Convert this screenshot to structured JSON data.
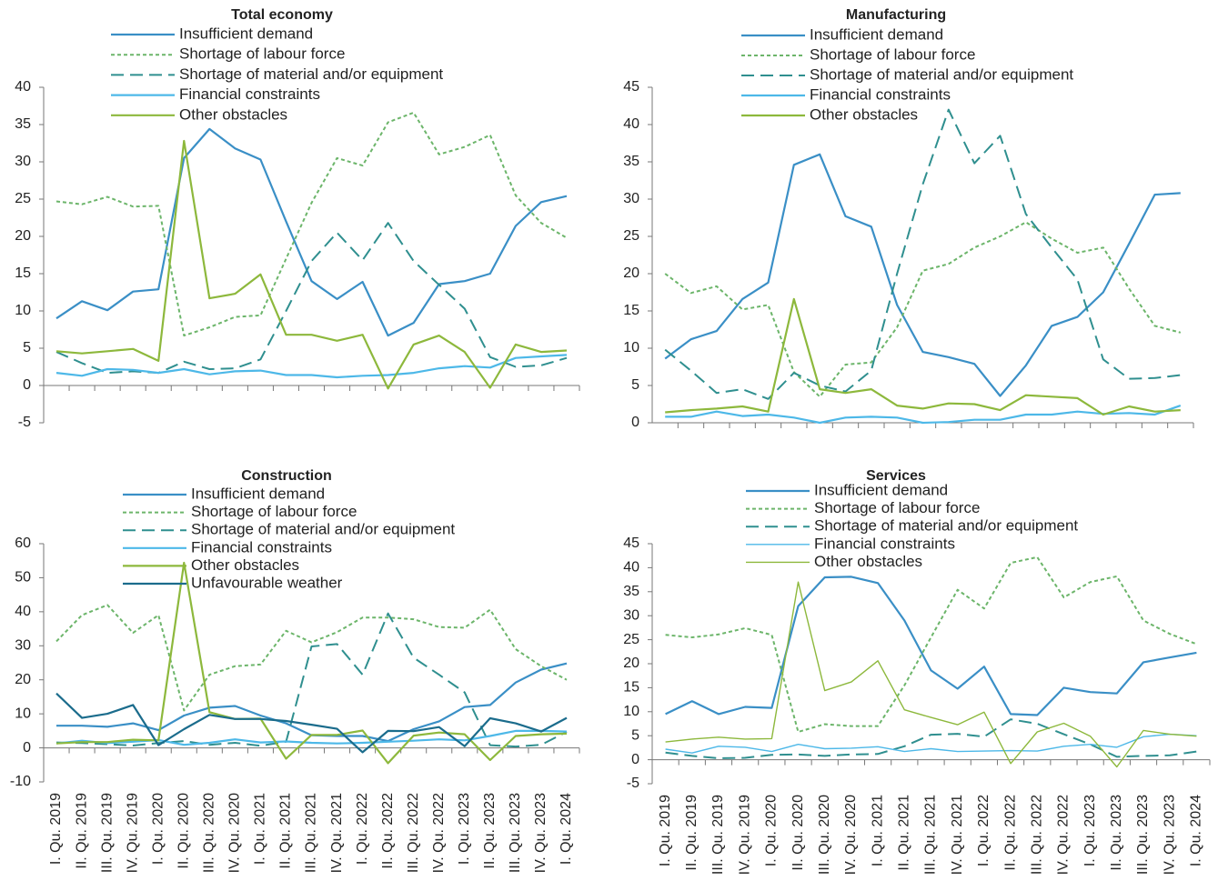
{
  "chart_data": [
    {
      "type": "line",
      "title": "Total economy",
      "categories": [
        null,
        null,
        null,
        null,
        null,
        null,
        null,
        null,
        null,
        null,
        null,
        null,
        null,
        null,
        null,
        null,
        null,
        null,
        null,
        null,
        null
      ],
      "ylim": [
        -5,
        40
      ],
      "yticks": [
        -5,
        0,
        5,
        10,
        15,
        20,
        25,
        30,
        35,
        40
      ],
      "series": [
        {
          "name": "Insufficient demand",
          "color": "#3a8fc6",
          "style": "solid",
          "values": [
            9,
            11.3,
            10.1,
            12.6,
            12.9,
            30.5,
            34.4,
            31.8,
            30.3,
            22,
            14,
            11.6,
            13.9,
            6.7,
            8.4,
            13.6,
            14,
            15,
            21.4,
            24.6,
            25.4
          ]
        },
        {
          "name": "Shortage of labour force",
          "color": "#6cb56a",
          "style": "dotted",
          "values": [
            24.7,
            24.3,
            25.3,
            24,
            24.1,
            6.7,
            7.8,
            9.2,
            9.4,
            17,
            24.5,
            30.5,
            29.5,
            35.3,
            36.6,
            31,
            32,
            33.6,
            25.5,
            21.8,
            19.8
          ]
        },
        {
          "name": "Shortage of material and/or equipment",
          "color": "#2f8f8f",
          "style": "dashed",
          "values": [
            4.5,
            3,
            1.7,
            1.9,
            1.7,
            3.2,
            2.2,
            2.3,
            3.5,
            10,
            16.7,
            20.5,
            16.8,
            21.8,
            16.7,
            13.5,
            10.3,
            3.8,
            2.5,
            2.7,
            3.7
          ]
        },
        {
          "name": "Financial constraints",
          "color": "#4db8e8",
          "style": "solid",
          "values": [
            1.7,
            1.3,
            2.2,
            2.1,
            1.7,
            2.2,
            1.5,
            1.9,
            2,
            1.4,
            1.4,
            1.1,
            1.3,
            1.4,
            1.7,
            2.3,
            2.6,
            2.4,
            3.7,
            3.9,
            4.1
          ]
        },
        {
          "name": "Other obstacles",
          "color": "#8db83c",
          "style": "solid",
          "values": [
            4.6,
            4.3,
            4.6,
            4.9,
            3.3,
            32.8,
            11.7,
            12.3,
            14.9,
            6.8,
            6.8,
            6,
            6.8,
            -0.4,
            5.5,
            6.7,
            4.5,
            -0.3,
            5.5,
            4.5,
            4.7
          ]
        }
      ]
    },
    {
      "type": "line",
      "title": "Manufacturing",
      "categories": [
        null,
        null,
        null,
        null,
        null,
        null,
        null,
        null,
        null,
        null,
        null,
        null,
        null,
        null,
        null,
        null,
        null,
        null,
        null,
        null,
        null
      ],
      "ylim": [
        0,
        45
      ],
      "yticks": [
        0,
        5,
        10,
        15,
        20,
        25,
        30,
        35,
        40,
        45
      ],
      "series": [
        {
          "name": "Insufficient demand",
          "color": "#3a8fc6",
          "style": "solid",
          "values": [
            8.6,
            11.2,
            12.3,
            16.6,
            18.8,
            34.6,
            36,
            27.7,
            26.3,
            15.8,
            9.5,
            8.8,
            7.9,
            3.6,
            7.7,
            13,
            14.2,
            17.5,
            24,
            30.6,
            30.8
          ]
        },
        {
          "name": "Shortage of labour force",
          "color": "#6cb56a",
          "style": "dotted",
          "values": [
            20,
            17.4,
            18.3,
            15.2,
            15.8,
            6.8,
            3.5,
            7.8,
            8.1,
            12.8,
            20.4,
            21.3,
            23.5,
            25,
            26.9,
            24.7,
            22.8,
            23.5,
            18,
            13,
            12.1
          ]
        },
        {
          "name": "Shortage of material and/or equipment",
          "color": "#2f8f8f",
          "style": "dashed",
          "values": [
            9.8,
            7,
            4,
            4.5,
            3.2,
            6.7,
            5,
            4.2,
            7,
            20,
            32,
            42,
            34.8,
            38.5,
            28,
            23.5,
            19.2,
            8.5,
            5.9,
            6,
            6.4
          ]
        },
        {
          "name": "Financial constraints",
          "color": "#4db8e8",
          "style": "solid",
          "values": [
            0.8,
            0.8,
            1.5,
            0.9,
            1.1,
            0.7,
            0,
            0.7,
            0.8,
            0.7,
            0,
            0.1,
            0.4,
            0.4,
            1.1,
            1.1,
            1.5,
            1.2,
            1.3,
            1.1,
            2.3
          ]
        },
        {
          "name": "Other obstacles",
          "color": "#8db83c",
          "style": "solid",
          "values": [
            1.4,
            1.7,
            1.9,
            2.2,
            1.5,
            16.6,
            4.5,
            4,
            4.5,
            2.3,
            1.9,
            2.6,
            2.5,
            1.7,
            3.7,
            3.5,
            3.3,
            1.1,
            2.2,
            1.5,
            1.7
          ]
        }
      ]
    },
    {
      "type": "line",
      "title": "Construction",
      "categories": [
        "I. Qu. 2019",
        "II. Qu. 2019",
        "III. Qu. 2019",
        "IV. Qu. 2019",
        "I. Qu. 2020",
        "II. Qu. 2020",
        "III. Qu. 2020",
        "IV. Qu. 2020",
        "I. Qu. 2021",
        "II. Qu. 2021",
        "III. Qu. 2021",
        "IV. Qu. 2021",
        "I. Qu. 2022",
        "II. Qu. 2022",
        "III. Qu. 2022",
        "IV. Qu. 2022",
        "I. Qu. 2023",
        "II. Qu. 2023",
        "III. Qu. 2023",
        "IV. Qu. 2023",
        "I. Qu. 2024"
      ],
      "ylim": [
        -10,
        60
      ],
      "yticks": [
        -10,
        0,
        10,
        20,
        30,
        40,
        50,
        60
      ],
      "series": [
        {
          "name": "Insufficient demand",
          "color": "#3a8fc6",
          "style": "solid",
          "values": [
            6.5,
            6.5,
            6.2,
            7.2,
            5.2,
            9.5,
            11.8,
            12.3,
            9.5,
            7.2,
            3.7,
            3.5,
            3.5,
            2,
            5.5,
            7.8,
            12,
            12.6,
            19.2,
            23,
            24.8
          ]
        },
        {
          "name": "Shortage of labour force",
          "color": "#6cb56a",
          "style": "dotted",
          "values": [
            31.3,
            39,
            42,
            33.8,
            39,
            11,
            21.5,
            24,
            24.5,
            34.4,
            31,
            34,
            38.3,
            38.3,
            37.8,
            35.5,
            35.3,
            40.6,
            29,
            24,
            20
          ]
        },
        {
          "name": "Shortage of material and/or equipment",
          "color": "#2f8f8f",
          "style": "dashed",
          "values": [
            1.6,
            1.4,
            1.1,
            0.7,
            1.4,
            2,
            0.9,
            1.5,
            0.6,
            1.8,
            29.8,
            30.5,
            21.5,
            39.5,
            26.5,
            21.5,
            16.3,
            0.8,
            0.4,
            0.9,
            4.7
          ]
        },
        {
          "name": "Financial constraints",
          "color": "#4db8e8",
          "style": "solid",
          "values": [
            1.3,
            2.1,
            1.4,
            1.8,
            2.3,
            0.9,
            1.5,
            2.5,
            1.6,
            1.9,
            1.5,
            1.3,
            1.5,
            1.8,
            2.1,
            2.5,
            2.2,
            3.5,
            5,
            5,
            4.8
          ]
        },
        {
          "name": "Other obstacles",
          "color": "#8db83c",
          "style": "solid",
          "values": [
            1.3,
            1.7,
            1.7,
            2.4,
            2.2,
            54.4,
            10.5,
            8.5,
            8.6,
            -3.2,
            3.8,
            3.8,
            5.1,
            -4.5,
            3.6,
            4.5,
            4,
            -3.6,
            3.5,
            4,
            4.2
          ]
        },
        {
          "name": "Unfavourable weather",
          "color": "#1b6c8c",
          "style": "solid",
          "values": [
            16,
            8.8,
            10,
            12.6,
            0.8,
            5.5,
            9.7,
            8.5,
            8.5,
            7.9,
            6.8,
            5.6,
            -1.3,
            5,
            4.9,
            6.1,
            0.5,
            8.7,
            7.2,
            4.8,
            8.8
          ]
        }
      ]
    },
    {
      "type": "line",
      "title": "Services",
      "categories": [
        "I. Qu. 2019",
        "II. Qu. 2019",
        "III. Qu. 2019",
        "IV. Qu. 2019",
        "I. Qu. 2020",
        "II. Qu. 2020",
        "III. Qu. 2020",
        "IV. Qu. 2020",
        "I. Qu. 2021",
        "II. Qu. 2021",
        "III. Qu. 2021",
        "IV. Qu. 2021",
        "I. Qu. 2022",
        "II. Qu. 2022",
        "III. Qu. 2022",
        "IV. Qu. 2022",
        "I. Qu. 2023",
        "II. Qu. 2023",
        "III. Qu. 2023",
        "IV. Qu. 2023",
        "I. Qu. 2024"
      ],
      "ylim": [
        -5,
        45
      ],
      "yticks": [
        -5,
        0,
        5,
        10,
        15,
        20,
        25,
        30,
        35,
        40,
        45
      ],
      "series": [
        {
          "name": "Insufficient demand",
          "color": "#3a8fc6",
          "style": "solid",
          "values": [
            9.5,
            12.2,
            9.5,
            11,
            10.8,
            32,
            38,
            38.1,
            36.8,
            29,
            18.6,
            14.8,
            19.4,
            9.5,
            9.3,
            15,
            14.1,
            13.8,
            20.3,
            21.3,
            22.3
          ]
        },
        {
          "name": "Shortage of labour force",
          "color": "#6cb56a",
          "style": "dotted",
          "values": [
            26,
            25.5,
            26.1,
            27.4,
            26,
            5.8,
            7.4,
            7,
            7,
            15.5,
            25.5,
            35.4,
            31.5,
            41,
            42.2,
            33.8,
            37,
            38.2,
            29,
            26.2,
            24.1
          ]
        },
        {
          "name": "Shortage of material and/or equipment",
          "color": "#2f8f8f",
          "style": "dashed",
          "values": [
            1.5,
            0.8,
            0.3,
            0.4,
            1,
            1.1,
            0.8,
            1.1,
            1.2,
            2.8,
            5.2,
            5.4,
            4.8,
            8.4,
            7.5,
            5.3,
            3.2,
            0.6,
            0.8,
            0.9,
            1.7
          ]
        },
        {
          "name": "Financial constraints",
          "color": "#4db8e8",
          "style": "thin",
          "values": [
            2.2,
            1.4,
            2.8,
            2.6,
            1.7,
            3.2,
            2.3,
            2.4,
            2.7,
            1.7,
            2.3,
            1.7,
            1.8,
            1.9,
            1.8,
            2.8,
            3.2,
            2.6,
            4.8,
            5.3,
            5
          ]
        },
        {
          "name": "Other obstacles",
          "color": "#8db83c",
          "style": "thin",
          "values": [
            3.7,
            4.3,
            4.7,
            4.3,
            4.4,
            37,
            14.4,
            16.2,
            20.6,
            10.4,
            8.8,
            7.3,
            9.9,
            -0.8,
            5.8,
            7.6,
            4.9,
            -1.5,
            6.1,
            5.3,
            4.9
          ]
        }
      ]
    }
  ]
}
